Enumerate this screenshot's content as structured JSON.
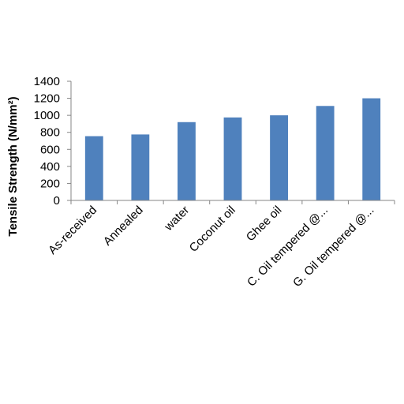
{
  "chart_data": {
    "type": "bar",
    "categories": [
      "As-received",
      "Annealed",
      "water",
      "Coconut oil",
      "Ghee oil",
      "C. Oil tempered @...",
      "G. Oil tempered @..."
    ],
    "values": [
      755,
      775,
      920,
      975,
      1000,
      1110,
      1200
    ],
    "title": "",
    "xlabel": "",
    "ylabel": "Tensile Strength (N/mm²)",
    "ylim": [
      0,
      1400
    ],
    "yticks": [
      "0",
      "200",
      "400",
      "600",
      "800",
      "1000",
      "1200",
      "1400"
    ],
    "grid": false,
    "legend": "none",
    "bar_color": "#4F81BD",
    "axis_color": "#868686"
  }
}
